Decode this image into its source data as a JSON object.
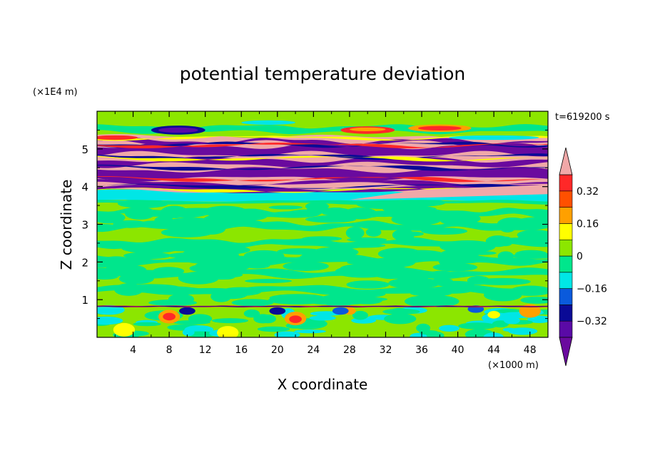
{
  "chart_data": {
    "type": "heatmap",
    "title": "potential temperature deviation",
    "xlabel": "X coordinate",
    "ylabel": "Z coordinate",
    "x_unit": "(×1000 m)",
    "y_unit": "(×1E4 m)",
    "time_label": "t=619200 s",
    "xlim": [
      0,
      50
    ],
    "ylim": [
      0,
      6
    ],
    "x_ticks": [
      4,
      8,
      12,
      16,
      20,
      24,
      28,
      32,
      36,
      40,
      44,
      48
    ],
    "y_ticks": [
      1,
      2,
      3,
      4,
      5
    ],
    "colorbar": {
      "levels": [
        -0.4,
        -0.32,
        -0.24,
        -0.16,
        -0.08,
        0,
        0.08,
        0.16,
        0.24,
        0.32,
        0.4
      ],
      "tick_labels": [
        "-0.32",
        "-0.16",
        "0",
        "0.16",
        "0.32"
      ],
      "tick_values": [
        -0.32,
        -0.16,
        0,
        0.16,
        0.32
      ],
      "colors": [
        "#6a0a9e",
        "#5a0aa6",
        "#0a0a96",
        "#0a5adc",
        "#00e6e6",
        "#00e68c",
        "#8ce600",
        "#ffff00",
        "#ffa000",
        "#ff5000",
        "#ff2828",
        "#f0a8a8"
      ]
    },
    "field_description_bands": [
      {
        "z_range": [
          0.0,
          0.8
        ],
        "class": "mixed, mostly green/cyan with red/yellow/blue cells"
      },
      {
        "z_range": [
          0.8,
          0.85
        ],
        "class": "thin red/blue line"
      },
      {
        "z_range": [
          0.85,
          3.6
        ],
        "class": "green / sea-green mottled"
      },
      {
        "z_range": [
          3.6,
          3.9
        ],
        "class": "cyan"
      },
      {
        "z_range": [
          3.9,
          5.4
        ],
        "class": "alternating pink and purple layers"
      },
      {
        "z_range": [
          5.4,
          6.0
        ],
        "class": "green/cyan with blue and red blobs"
      }
    ]
  }
}
